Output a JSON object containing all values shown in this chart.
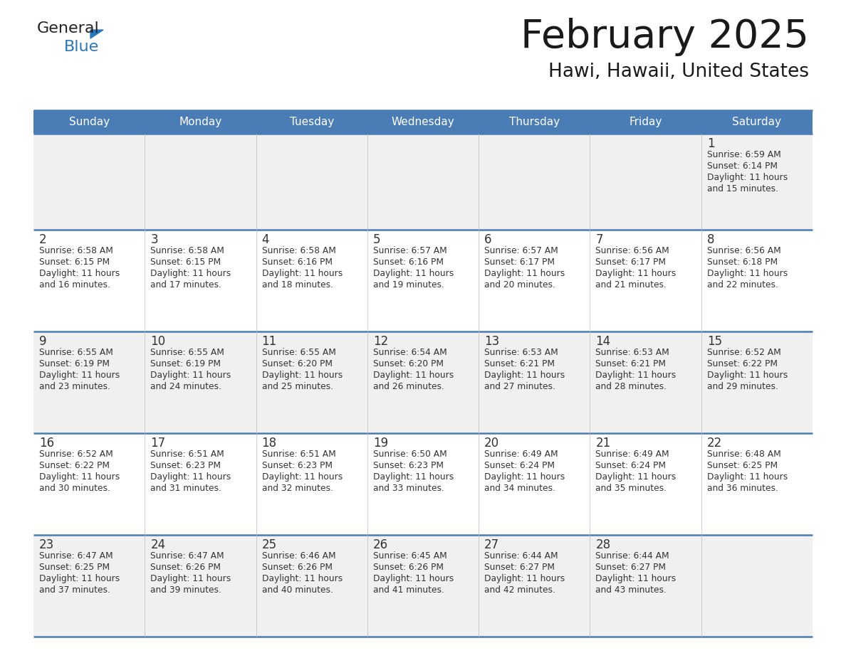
{
  "title": "February 2025",
  "subtitle": "Hawi, Hawaii, United States",
  "days_of_week": [
    "Sunday",
    "Monday",
    "Tuesday",
    "Wednesday",
    "Thursday",
    "Friday",
    "Saturday"
  ],
  "header_bg": "#4a7db5",
  "header_text_color": "#FFFFFF",
  "cell_bg": "#F0F0F0",
  "cell_bg2": "#FFFFFF",
  "border_color": "#4a7db5",
  "day_number_color": "#333333",
  "text_color": "#333333",
  "title_color": "#1a1a1a",
  "logo_general_color": "#222222",
  "logo_blue_color": "#2878be",
  "logo_triangle_color": "#2878be",
  "calendar_data": [
    [
      null,
      null,
      null,
      null,
      null,
      null,
      {
        "day": 1,
        "sunrise": "6:59 AM",
        "sunset": "6:14 PM",
        "daylight": "11 hours and 15 minutes."
      }
    ],
    [
      {
        "day": 2,
        "sunrise": "6:58 AM",
        "sunset": "6:15 PM",
        "daylight": "11 hours and 16 minutes."
      },
      {
        "day": 3,
        "sunrise": "6:58 AM",
        "sunset": "6:15 PM",
        "daylight": "11 hours and 17 minutes."
      },
      {
        "day": 4,
        "sunrise": "6:58 AM",
        "sunset": "6:16 PM",
        "daylight": "11 hours and 18 minutes."
      },
      {
        "day": 5,
        "sunrise": "6:57 AM",
        "sunset": "6:16 PM",
        "daylight": "11 hours and 19 minutes."
      },
      {
        "day": 6,
        "sunrise": "6:57 AM",
        "sunset": "6:17 PM",
        "daylight": "11 hours and 20 minutes."
      },
      {
        "day": 7,
        "sunrise": "6:56 AM",
        "sunset": "6:17 PM",
        "daylight": "11 hours and 21 minutes."
      },
      {
        "day": 8,
        "sunrise": "6:56 AM",
        "sunset": "6:18 PM",
        "daylight": "11 hours and 22 minutes."
      }
    ],
    [
      {
        "day": 9,
        "sunrise": "6:55 AM",
        "sunset": "6:19 PM",
        "daylight": "11 hours and 23 minutes."
      },
      {
        "day": 10,
        "sunrise": "6:55 AM",
        "sunset": "6:19 PM",
        "daylight": "11 hours and 24 minutes."
      },
      {
        "day": 11,
        "sunrise": "6:55 AM",
        "sunset": "6:20 PM",
        "daylight": "11 hours and 25 minutes."
      },
      {
        "day": 12,
        "sunrise": "6:54 AM",
        "sunset": "6:20 PM",
        "daylight": "11 hours and 26 minutes."
      },
      {
        "day": 13,
        "sunrise": "6:53 AM",
        "sunset": "6:21 PM",
        "daylight": "11 hours and 27 minutes."
      },
      {
        "day": 14,
        "sunrise": "6:53 AM",
        "sunset": "6:21 PM",
        "daylight": "11 hours and 28 minutes."
      },
      {
        "day": 15,
        "sunrise": "6:52 AM",
        "sunset": "6:22 PM",
        "daylight": "11 hours and 29 minutes."
      }
    ],
    [
      {
        "day": 16,
        "sunrise": "6:52 AM",
        "sunset": "6:22 PM",
        "daylight": "11 hours and 30 minutes."
      },
      {
        "day": 17,
        "sunrise": "6:51 AM",
        "sunset": "6:23 PM",
        "daylight": "11 hours and 31 minutes."
      },
      {
        "day": 18,
        "sunrise": "6:51 AM",
        "sunset": "6:23 PM",
        "daylight": "11 hours and 32 minutes."
      },
      {
        "day": 19,
        "sunrise": "6:50 AM",
        "sunset": "6:23 PM",
        "daylight": "11 hours and 33 minutes."
      },
      {
        "day": 20,
        "sunrise": "6:49 AM",
        "sunset": "6:24 PM",
        "daylight": "11 hours and 34 minutes."
      },
      {
        "day": 21,
        "sunrise": "6:49 AM",
        "sunset": "6:24 PM",
        "daylight": "11 hours and 35 minutes."
      },
      {
        "day": 22,
        "sunrise": "6:48 AM",
        "sunset": "6:25 PM",
        "daylight": "11 hours and 36 minutes."
      }
    ],
    [
      {
        "day": 23,
        "sunrise": "6:47 AM",
        "sunset": "6:25 PM",
        "daylight": "11 hours and 37 minutes."
      },
      {
        "day": 24,
        "sunrise": "6:47 AM",
        "sunset": "6:26 PM",
        "daylight": "11 hours and 39 minutes."
      },
      {
        "day": 25,
        "sunrise": "6:46 AM",
        "sunset": "6:26 PM",
        "daylight": "11 hours and 40 minutes."
      },
      {
        "day": 26,
        "sunrise": "6:45 AM",
        "sunset": "6:26 PM",
        "daylight": "11 hours and 41 minutes."
      },
      {
        "day": 27,
        "sunrise": "6:44 AM",
        "sunset": "6:27 PM",
        "daylight": "11 hours and 42 minutes."
      },
      {
        "day": 28,
        "sunrise": "6:44 AM",
        "sunset": "6:27 PM",
        "daylight": "11 hours and 43 minutes."
      },
      null
    ]
  ]
}
